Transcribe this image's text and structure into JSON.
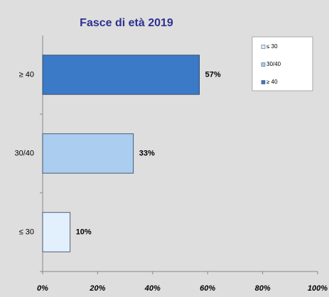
{
  "chart_data": {
    "type": "hbar",
    "title": "Fasce di età 2019",
    "categories": [
      "≤ 30",
      "30/40",
      "≥ 40"
    ],
    "values": [
      10,
      33,
      57
    ],
    "value_labels": [
      "10%",
      "33%",
      "57%"
    ],
    "colors": [
      "#e2effc",
      "#abcdef",
      "#3b7ac6"
    ],
    "xlim": [
      0,
      100
    ],
    "xticks": [
      {
        "value": 0,
        "label": "0%"
      },
      {
        "value": 20,
        "label": "20%"
      },
      {
        "value": 40,
        "label": "40%"
      },
      {
        "value": 60,
        "label": "60%"
      },
      {
        "value": 80,
        "label": "80%"
      },
      {
        "value": 100,
        "label": "100%"
      }
    ],
    "legend": "top-right"
  }
}
